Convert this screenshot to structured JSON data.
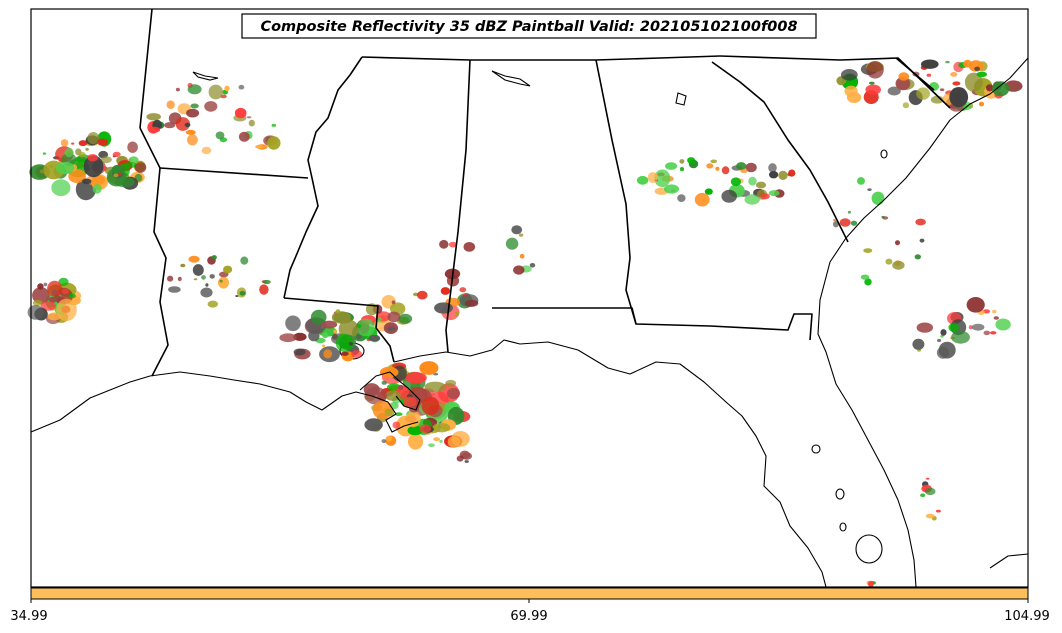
{
  "title": "Composite Reflectivity 35 dBZ Paintball Valid: 202105102100f008",
  "colorbar": {
    "fill_color": "#ffbe5c",
    "ticks": [
      "34.99",
      "69.99",
      "104.99"
    ]
  },
  "paintball_colors": [
    "#ff3b3b",
    "#e02a1a",
    "#ff8c1a",
    "#ffae42",
    "#a3a322",
    "#8f8f2e",
    "#2e8b2e",
    "#4fd14f",
    "#00b400",
    "#8b2e2e",
    "#a04a4a",
    "#404040",
    "#5a5a5a"
  ],
  "map": {
    "features": [
      "state-borders",
      "coastline",
      "lakes"
    ]
  }
}
